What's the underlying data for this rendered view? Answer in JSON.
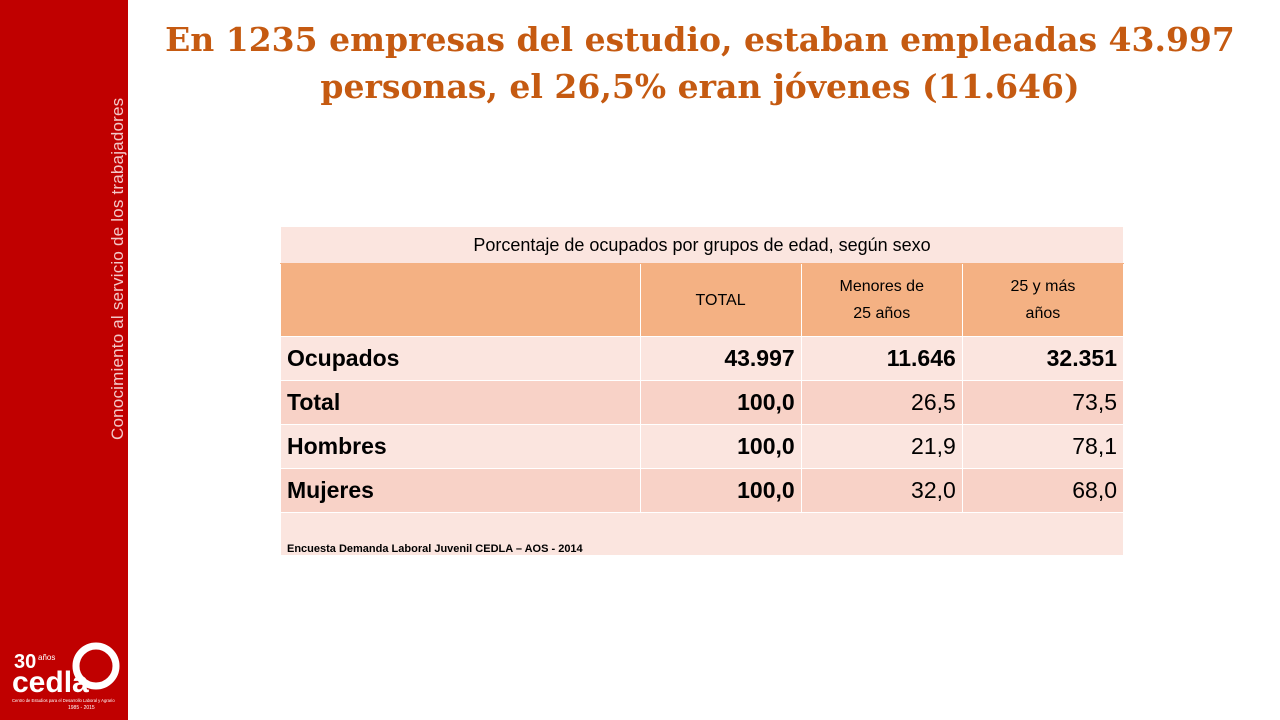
{
  "sidebar": {
    "tagline": "Conocimiento al servicio de los trabajadores",
    "logo": {
      "years_number": "30",
      "years_word": "años",
      "brand": "cedla",
      "subtitle_line1": "Centro de Estudios para el Desarrollo Laboral y Agrario",
      "subtitle_line2": "1985 - 2015",
      "icon": "cedla-30-anos-logo"
    }
  },
  "title": {
    "line1": "En 1235 empresas del estudio, estaban empleadas 43.997",
    "line2": "personas, el 26,5% eran jóvenes (11.646)"
  },
  "table": {
    "caption": "Porcentaje de ocupados por grupos de edad, según sexo",
    "headers": {
      "total": "TOTAL",
      "under25_l1": "Menores de",
      "under25_l2": "25 años",
      "over25_l1": "25 y más",
      "over25_l2": "años"
    },
    "rows": [
      {
        "label": "Ocupados",
        "total": "43.997",
        "under25": "11.646",
        "over25": "32.351"
      },
      {
        "label": "Total",
        "total": "100,0",
        "under25": "26,5",
        "over25": "73,5"
      },
      {
        "label": "Hombres",
        "total": "100,0",
        "under25": "21,9",
        "over25": "78,1"
      },
      {
        "label": "Mujeres",
        "total": "100,0",
        "under25": "32,0",
        "over25": "68,0"
      }
    ],
    "source": "Encuesta Demanda Laboral Juvenil CEDLA – AOS - 2014"
  },
  "colors": {
    "sidebar": "#c00000",
    "title": "#c55a11",
    "header": "#f4b183",
    "row_light": "#fbe5df",
    "row_dark": "#f8d2c7"
  }
}
